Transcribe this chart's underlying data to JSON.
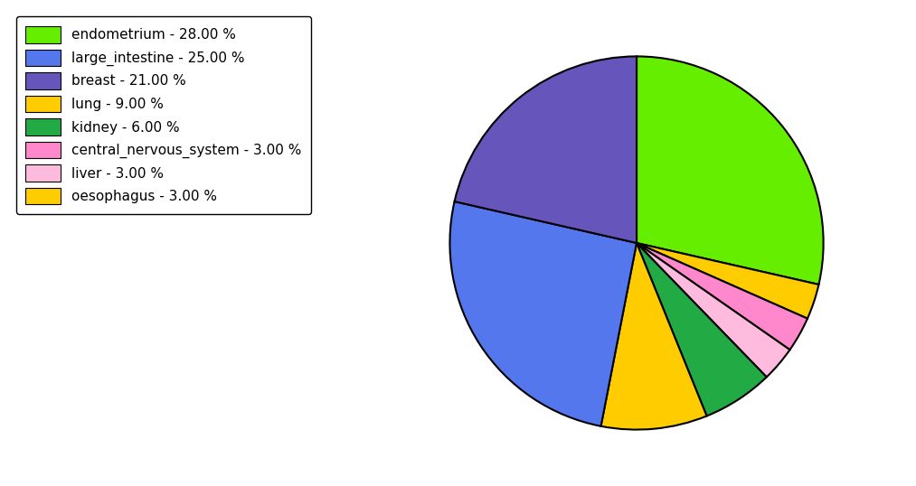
{
  "labels": [
    "endometrium",
    "oesophagus",
    "central_nervous_system",
    "liver",
    "kidney",
    "lung",
    "large_intestine",
    "breast"
  ],
  "values": [
    28,
    3,
    3,
    3,
    6,
    9,
    25,
    21
  ],
  "colors": [
    "#66ee00",
    "#ffcc00",
    "#ff88cc",
    "#ffbbdd",
    "#22aa44",
    "#ffcc00",
    "#5577ee",
    "#6655bb"
  ],
  "legend_order_labels": [
    "endometrium - 28.00 %",
    "large_intestine - 25.00 %",
    "breast - 21.00 %",
    "lung - 9.00 %",
    "kidney - 6.00 %",
    "central_nervous_system - 3.00 %",
    "liver - 3.00 %",
    "oesophagus - 3.00 %"
  ],
  "legend_order_colors": [
    "#66ee00",
    "#5577ee",
    "#6655bb",
    "#ffcc00",
    "#22aa44",
    "#ff88cc",
    "#ffbbdd",
    "#ffcc00"
  ],
  "startangle": 90,
  "figsize": [
    10.13,
    5.38
  ],
  "dpi": 100
}
